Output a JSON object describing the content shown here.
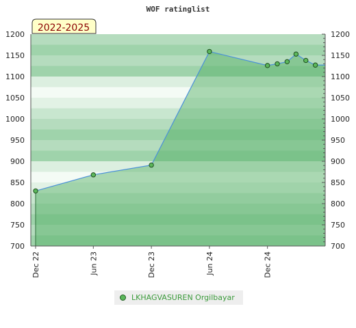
{
  "chart_data": {
    "type": "area",
    "title": "WOF ratinglist",
    "badge": "2022-2025",
    "ylim": [
      700,
      1200
    ],
    "yticks": [
      700,
      750,
      800,
      850,
      900,
      950,
      1000,
      1050,
      1100,
      1150,
      1200
    ],
    "xticks": [
      {
        "label": "Dec 22",
        "date": "2022-12-01"
      },
      {
        "label": "Jun 23",
        "date": "2023-06-01"
      },
      {
        "label": "Dec 23",
        "date": "2023-12-01"
      },
      {
        "label": "Jun 24",
        "date": "2024-06-01"
      },
      {
        "label": "Dec 24",
        "date": "2024-12-01"
      }
    ],
    "xlim": [
      "2022-12-01",
      "2025-06-01"
    ],
    "series": [
      {
        "name": "LKHAGVASUREN Orgilbayar",
        "color": "#5cb85c",
        "line_color": "#4a90d9",
        "points": [
          {
            "date": "2022-12-01",
            "value": 830
          },
          {
            "date": "2023-06-01",
            "value": 868
          },
          {
            "date": "2023-12-01",
            "value": 891
          },
          {
            "date": "2024-06-01",
            "value": 1159
          },
          {
            "date": "2024-12-01",
            "value": 1126
          },
          {
            "date": "2025-01-01",
            "value": 1130
          },
          {
            "date": "2025-02-01",
            "value": 1135
          },
          {
            "date": "2025-03-01",
            "value": 1153
          },
          {
            "date": "2025-04-01",
            "value": 1138
          },
          {
            "date": "2025-05-01",
            "value": 1127
          }
        ]
      }
    ],
    "grid": true,
    "legend_position": "bottom-center"
  }
}
